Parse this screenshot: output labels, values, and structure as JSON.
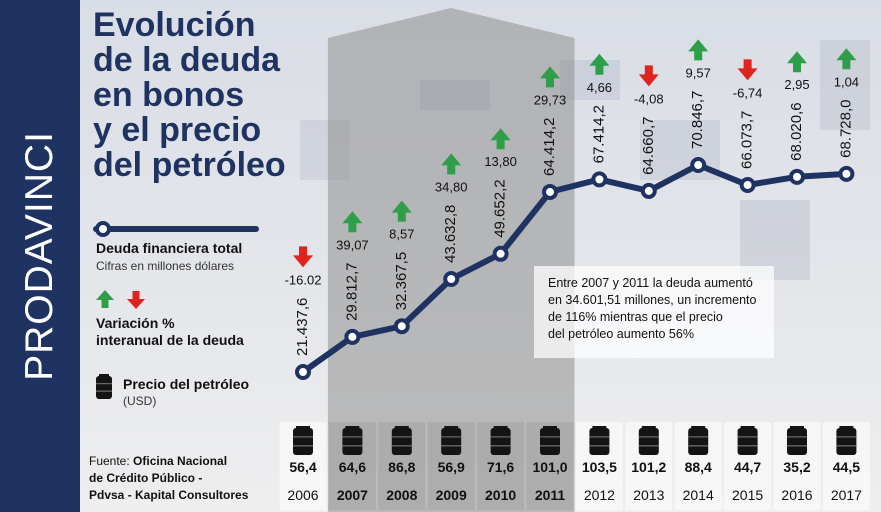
{
  "brand": "PRODAVINCI",
  "title_lines": [
    "Evolución",
    "de la deuda",
    "en bonos",
    "y el precio",
    "del petróleo"
  ],
  "legend": {
    "debt_label": "Deuda financiera total",
    "debt_sublabel": "Cifras en millones dólares",
    "variation_label_line1": "Variación %",
    "variation_label_line2": "interanual de la deuda",
    "oil_label": "Precio del petróleo",
    "oil_sublabel": "(USD)"
  },
  "annotation": [
    "Entre 2007 y 2011 la deuda aumentó",
    "en 34.601,51 millones, un incremento",
    "de 116% mientras que el precio",
    "del petróleo aumento 56%"
  ],
  "source": {
    "prefix": "Fuente: ",
    "line1": "Oficina Nacional",
    "line2": "de Crédito Público -",
    "line3": "Pdvsa - Kapital Consultores"
  },
  "colors": {
    "navy": "#1f3363",
    "up_arrow": "#2e9e48",
    "down_arrow": "#e0231c",
    "highlight": "#8f8f8f"
  },
  "chart_data": {
    "type": "line",
    "x": [
      "2006",
      "2007",
      "2008",
      "2009",
      "2010",
      "2011",
      "2012",
      "2013",
      "2014",
      "2015",
      "2016",
      "2017"
    ],
    "highlighted_years": [
      "2007",
      "2008",
      "2009",
      "2010",
      "2011"
    ],
    "series": [
      {
        "name": "Deuda financiera total",
        "values": [
          21437.6,
          29812.7,
          32367.5,
          43632.8,
          49652.2,
          64414.2,
          67414.2,
          64660.7,
          70846.7,
          66073.7,
          68020.6,
          68728.0
        ],
        "labels": [
          "21.437,6",
          "29.812,7",
          "32.367,5",
          "43.632,8",
          "49.652,2",
          "64.414,2",
          "67.414,2",
          "64.660,7",
          "70.846,7",
          "66.073,7",
          "68.020,6",
          "68.728,0"
        ]
      },
      {
        "name": "Variación % interanual de la deuda",
        "values": [
          -16.02,
          39.07,
          8.57,
          34.8,
          13.8,
          29.73,
          4.66,
          -4.08,
          9.57,
          -6.74,
          2.95,
          1.04
        ],
        "labels": [
          "-16.02",
          "39,07",
          "8,57",
          "34,80",
          "13,80",
          "29,73",
          "4,66",
          "-4,08",
          "9,57",
          "-6,74",
          "2,95",
          "1,04"
        ]
      },
      {
        "name": "Precio del petróleo",
        "values": [
          56.4,
          64.6,
          86.8,
          56.9,
          71.6,
          101.0,
          103.5,
          101.2,
          88.4,
          44.7,
          35.2,
          44.5
        ],
        "labels": [
          "56,4",
          "64,6",
          "86,8",
          "56,9",
          "71,6",
          "101,0",
          "103,5",
          "101,2",
          "88,4",
          "44,7",
          "35,2",
          "44,5"
        ]
      }
    ]
  }
}
